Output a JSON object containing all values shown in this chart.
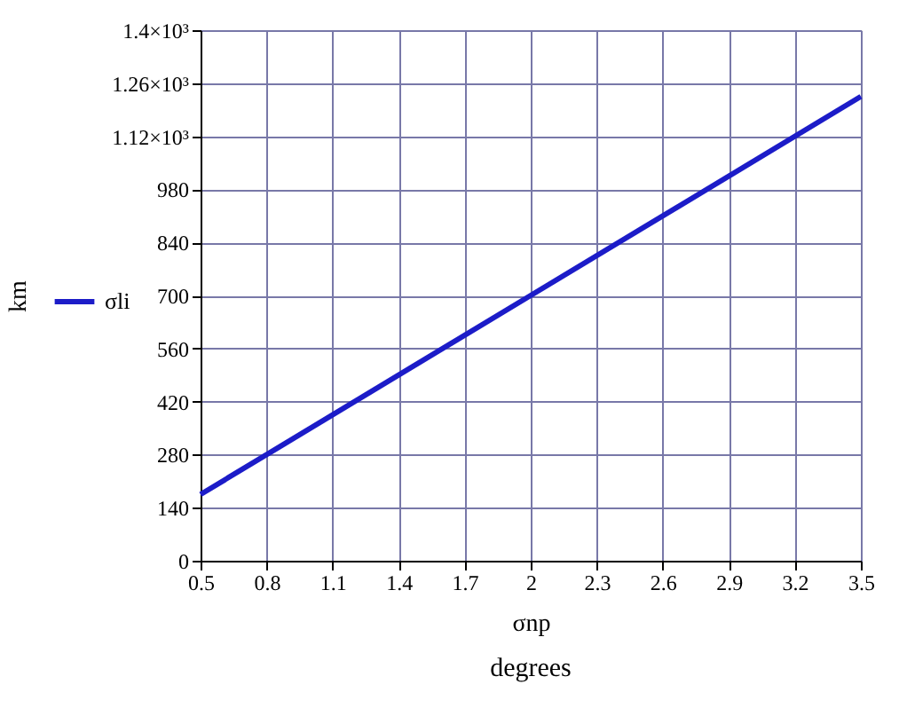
{
  "chart_data": {
    "type": "line",
    "xlabel": "σnp",
    "ylabel": "km",
    "annotations": [
      "degrees"
    ],
    "x": [
      0.5,
      2,
      3.5
    ],
    "series": [
      {
        "name": "σli",
        "color": "#1c1cc8",
        "values": [
          175,
          700,
          1225
        ]
      }
    ],
    "xlim": [
      0.5,
      3.5
    ],
    "xticks": [
      0.5,
      0.8,
      1.1,
      1.4,
      1.7,
      2,
      2.3,
      2.6,
      2.9,
      3.2,
      3.5
    ],
    "ylim": [
      0,
      1400
    ],
    "yticks": [
      0,
      140,
      280,
      420,
      560,
      700,
      840,
      980,
      {
        "value": 1120,
        "label": "1.12×10³"
      },
      {
        "value": 1260,
        "label": "1.26×10³"
      },
      {
        "value": 1400,
        "label": "1.4×10³"
      }
    ],
    "grid": true,
    "legend": "left",
    "marker": "none",
    "line_style": "solid"
  }
}
